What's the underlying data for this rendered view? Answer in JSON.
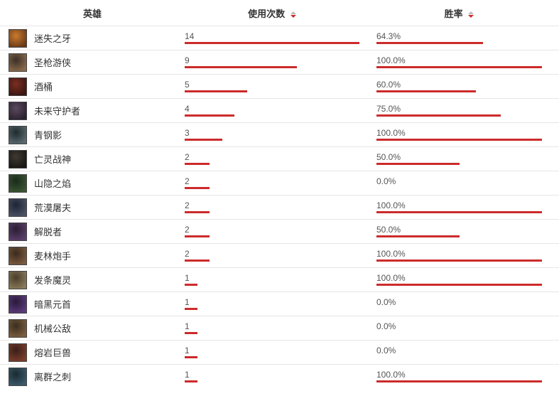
{
  "headers": {
    "hero": "英雄",
    "usage": "使用次数",
    "winrate": "胜率"
  },
  "usage_max": 14,
  "bar_color": "#cc2b2b",
  "border_color": "#e6e6e6",
  "rows": [
    {
      "name": "迷失之牙",
      "usage": 14,
      "usage_label": "14",
      "win_pct": 64.3,
      "win_label": "64.3%",
      "avatar_colors": [
        "#c97b2e",
        "#6b3a17"
      ]
    },
    {
      "name": "圣枪游侠",
      "usage": 9,
      "usage_label": "9",
      "win_pct": 100.0,
      "win_label": "100.0%",
      "avatar_colors": [
        "#3a2f28",
        "#8a6a4a"
      ]
    },
    {
      "name": "酒桶",
      "usage": 5,
      "usage_label": "5",
      "win_pct": 60.0,
      "win_label": "60.0%",
      "avatar_colors": [
        "#7a2e22",
        "#3a1610"
      ]
    },
    {
      "name": "未来守护者",
      "usage": 4,
      "usage_label": "4",
      "win_pct": 75.0,
      "win_label": "75.0%",
      "avatar_colors": [
        "#5b4a5e",
        "#2b2230"
      ]
    },
    {
      "name": "青钢影",
      "usage": 3,
      "usage_label": "3",
      "win_pct": 100.0,
      "win_label": "100.0%",
      "avatar_colors": [
        "#1e2a2e",
        "#5a6a6e"
      ]
    },
    {
      "name": "亡灵战神",
      "usage": 2,
      "usage_label": "2",
      "win_pct": 50.0,
      "win_label": "50.0%",
      "avatar_colors": [
        "#3e3a32",
        "#1a1814"
      ]
    },
    {
      "name": "山隐之焰",
      "usage": 2,
      "usage_label": "2",
      "win_pct": 0.0,
      "win_label": "0.0%",
      "avatar_colors": [
        "#1a2a1a",
        "#3a5532"
      ]
    },
    {
      "name": "荒漠屠夫",
      "usage": 2,
      "usage_label": "2",
      "win_pct": 100.0,
      "win_label": "100.0%",
      "avatar_colors": [
        "#1e2432",
        "#4a5266"
      ]
    },
    {
      "name": "解脱者",
      "usage": 2,
      "usage_label": "2",
      "win_pct": 50.0,
      "win_label": "50.0%",
      "avatar_colors": [
        "#2a1e32",
        "#5a3e6a"
      ]
    },
    {
      "name": "麦林炮手",
      "usage": 2,
      "usage_label": "2",
      "win_pct": 100.0,
      "win_label": "100.0%",
      "avatar_colors": [
        "#3a2a1e",
        "#7a5a3e"
      ]
    },
    {
      "name": "发条魔灵",
      "usage": 1,
      "usage_label": "1",
      "win_pct": 100.0,
      "win_label": "100.0%",
      "avatar_colors": [
        "#4a3e2a",
        "#8a7a5a"
      ]
    },
    {
      "name": "暗黑元首",
      "usage": 1,
      "usage_label": "1",
      "win_pct": 0.0,
      "win_label": "0.0%",
      "avatar_colors": [
        "#2a1a3a",
        "#5a3a7a"
      ]
    },
    {
      "name": "机械公敌",
      "usage": 1,
      "usage_label": "1",
      "win_pct": 0.0,
      "win_label": "0.0%",
      "avatar_colors": [
        "#3a2e1e",
        "#7a5e3e"
      ]
    },
    {
      "name": "熔岩巨兽",
      "usage": 1,
      "usage_label": "1",
      "win_pct": 0.0,
      "win_label": "0.0%",
      "avatar_colors": [
        "#3a1e1a",
        "#7a3e2a"
      ]
    },
    {
      "name": "离群之刺",
      "usage": 1,
      "usage_label": "1",
      "win_pct": 100.0,
      "win_label": "100.0%",
      "avatar_colors": [
        "#1a2a32",
        "#3a5a6a"
      ]
    }
  ]
}
